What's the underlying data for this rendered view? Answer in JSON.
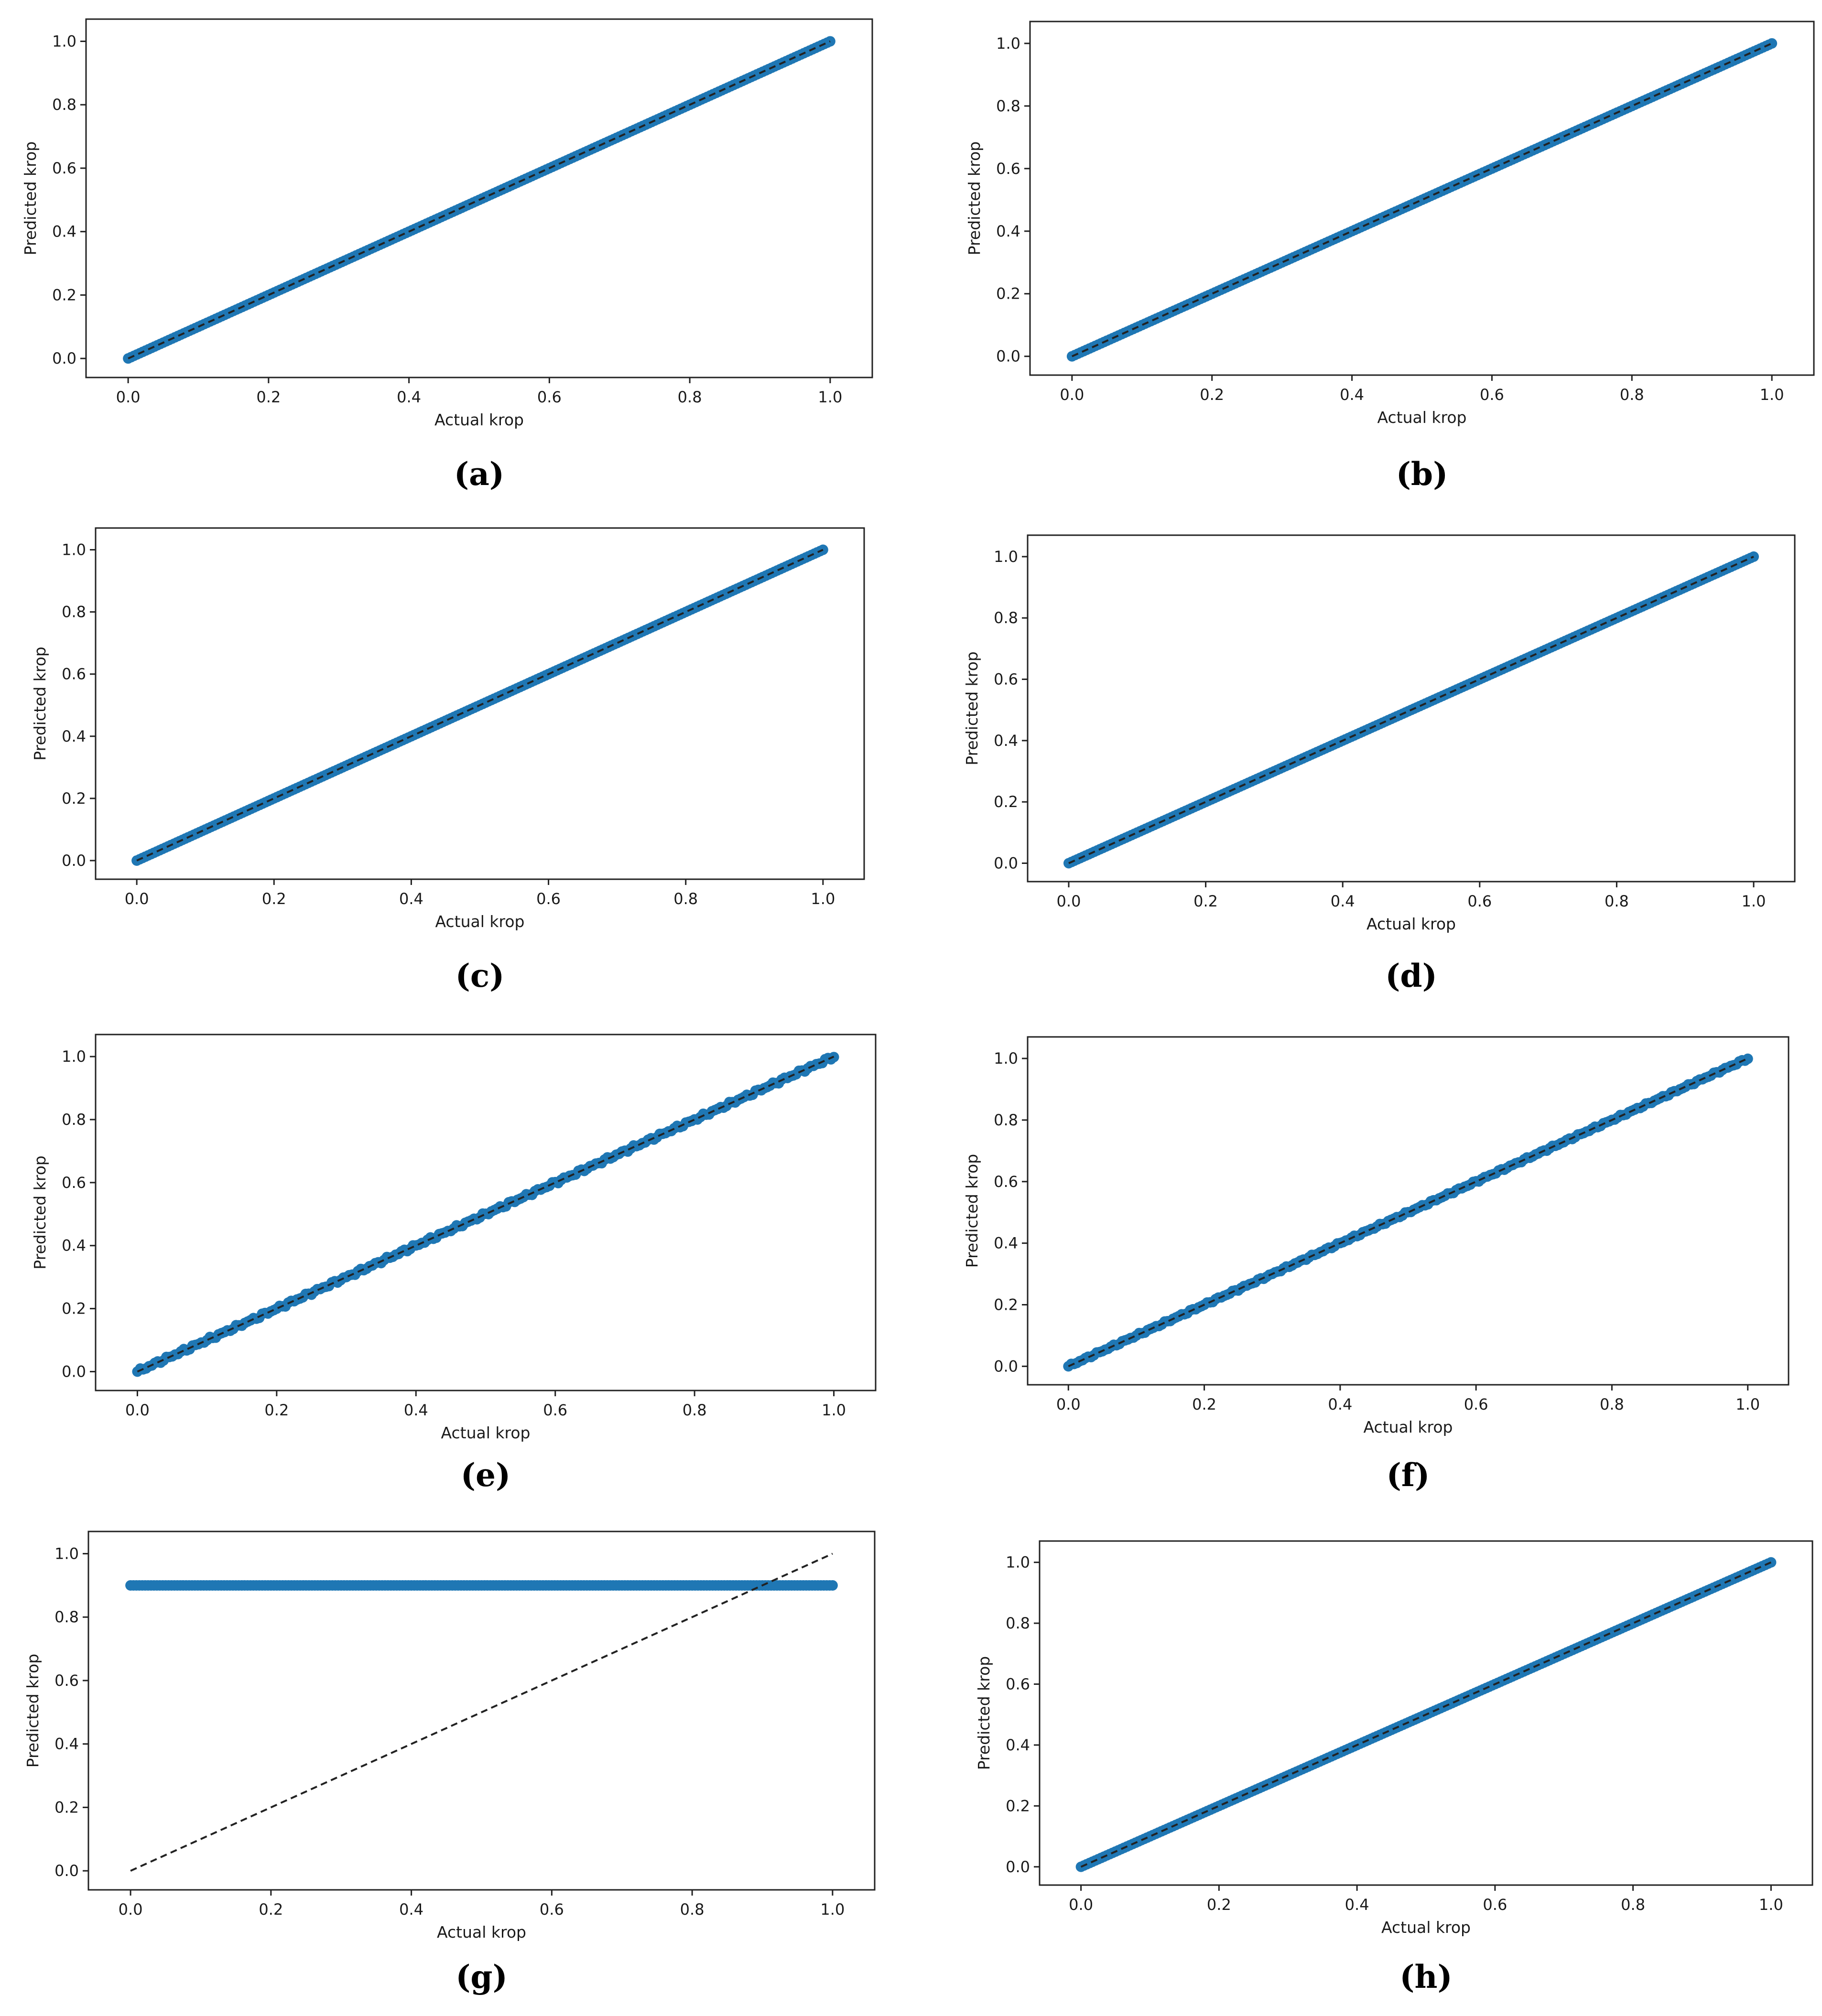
{
  "chart_data": [
    {
      "type": "scatter",
      "panel_label": "(a)",
      "xlabel": "Actual krop",
      "ylabel": "Predicted krop",
      "xlim": [
        -0.06,
        1.06
      ],
      "ylim": [
        -0.06,
        1.07
      ],
      "xticks": [
        0.0,
        0.2,
        0.4,
        0.6,
        0.8,
        1.0
      ],
      "yticks": [
        0.0,
        0.2,
        0.4,
        0.6,
        0.8,
        1.0
      ],
      "xtick_labels": [
        "0.0",
        "0.2",
        "0.4",
        "0.6",
        "0.8",
        "1.0"
      ],
      "ytick_labels": [
        "0.0",
        "0.2",
        "0.4",
        "0.6",
        "0.8",
        "1.0"
      ],
      "series": [
        {
          "name": "predictions",
          "kind": "points",
          "pattern": "identity",
          "x_range": [
            0.0,
            1.0
          ],
          "jitter": 0.0
        },
        {
          "name": "reference",
          "kind": "dashed-line",
          "x": [
            0.0,
            1.0
          ],
          "y": [
            0.0,
            1.0
          ]
        }
      ]
    },
    {
      "type": "scatter",
      "panel_label": "(b)",
      "xlabel": "Actual krop",
      "ylabel": "Predicted krop",
      "xlim": [
        -0.06,
        1.06
      ],
      "ylim": [
        -0.06,
        1.07
      ],
      "xticks": [
        0.0,
        0.2,
        0.4,
        0.6,
        0.8,
        1.0
      ],
      "yticks": [
        0.0,
        0.2,
        0.4,
        0.6,
        0.8,
        1.0
      ],
      "xtick_labels": [
        "0.0",
        "0.2",
        "0.4",
        "0.6",
        "0.8",
        "1.0"
      ],
      "ytick_labels": [
        "0.0",
        "0.2",
        "0.4",
        "0.6",
        "0.8",
        "1.0"
      ],
      "series": [
        {
          "name": "predictions",
          "kind": "points",
          "pattern": "identity",
          "x_range": [
            0.0,
            1.0
          ],
          "jitter": 0.0
        },
        {
          "name": "reference",
          "kind": "dashed-line",
          "x": [
            0.0,
            1.0
          ],
          "y": [
            0.0,
            1.0
          ]
        }
      ]
    },
    {
      "type": "scatter",
      "panel_label": "(c)",
      "xlabel": "Actual krop",
      "ylabel": "Predicted krop",
      "xlim": [
        -0.06,
        1.06
      ],
      "ylim": [
        -0.06,
        1.07
      ],
      "xticks": [
        0.0,
        0.2,
        0.4,
        0.6,
        0.8,
        1.0
      ],
      "yticks": [
        0.0,
        0.2,
        0.4,
        0.6,
        0.8,
        1.0
      ],
      "xtick_labels": [
        "0.0",
        "0.2",
        "0.4",
        "0.6",
        "0.8",
        "1.0"
      ],
      "ytick_labels": [
        "0.0",
        "0.2",
        "0.4",
        "0.6",
        "0.8",
        "1.0"
      ],
      "series": [
        {
          "name": "predictions",
          "kind": "points",
          "pattern": "identity",
          "x_range": [
            0.0,
            1.0
          ],
          "jitter": 0.0
        },
        {
          "name": "reference",
          "kind": "dashed-line",
          "x": [
            0.0,
            1.0
          ],
          "y": [
            0.0,
            1.0
          ]
        }
      ]
    },
    {
      "type": "scatter",
      "panel_label": "(d)",
      "xlabel": "Actual krop",
      "ylabel": "Predicted krop",
      "xlim": [
        -0.06,
        1.06
      ],
      "ylim": [
        -0.06,
        1.07
      ],
      "xticks": [
        0.0,
        0.2,
        0.4,
        0.6,
        0.8,
        1.0
      ],
      "yticks": [
        0.0,
        0.2,
        0.4,
        0.6,
        0.8,
        1.0
      ],
      "xtick_labels": [
        "0.0",
        "0.2",
        "0.4",
        "0.6",
        "0.8",
        "1.0"
      ],
      "ytick_labels": [
        "0.0",
        "0.2",
        "0.4",
        "0.6",
        "0.8",
        "1.0"
      ],
      "series": [
        {
          "name": "predictions",
          "kind": "points",
          "pattern": "identity",
          "x_range": [
            0.0,
            1.0
          ],
          "jitter": 0.0
        },
        {
          "name": "reference",
          "kind": "dashed-line",
          "x": [
            0.0,
            1.0
          ],
          "y": [
            0.0,
            1.0
          ]
        }
      ]
    },
    {
      "type": "scatter",
      "panel_label": "(e)",
      "xlabel": "Actual krop",
      "ylabel": "Predicted krop",
      "xlim": [
        -0.06,
        1.06
      ],
      "ylim": [
        -0.06,
        1.07
      ],
      "xticks": [
        0.0,
        0.2,
        0.4,
        0.6,
        0.8,
        1.0
      ],
      "yticks": [
        0.0,
        0.2,
        0.4,
        0.6,
        0.8,
        1.0
      ],
      "xtick_labels": [
        "0.0",
        "0.2",
        "0.4",
        "0.6",
        "0.8",
        "1.0"
      ],
      "ytick_labels": [
        "0.0",
        "0.2",
        "0.4",
        "0.6",
        "0.8",
        "1.0"
      ],
      "series": [
        {
          "name": "predictions",
          "kind": "points",
          "pattern": "identity",
          "x_range": [
            0.0,
            1.0
          ],
          "jitter": 0.006
        },
        {
          "name": "reference",
          "kind": "dashed-line",
          "x": [
            0.0,
            1.0
          ],
          "y": [
            0.0,
            1.0
          ]
        }
      ]
    },
    {
      "type": "scatter",
      "panel_label": "(f)",
      "xlabel": "Actual krop",
      "ylabel": "Predicted krop",
      "xlim": [
        -0.06,
        1.06
      ],
      "ylim": [
        -0.06,
        1.07
      ],
      "xticks": [
        0.0,
        0.2,
        0.4,
        0.6,
        0.8,
        1.0
      ],
      "yticks": [
        0.0,
        0.2,
        0.4,
        0.6,
        0.8,
        1.0
      ],
      "xtick_labels": [
        "0.0",
        "0.2",
        "0.4",
        "0.6",
        "0.8",
        "1.0"
      ],
      "ytick_labels": [
        "0.0",
        "0.2",
        "0.4",
        "0.6",
        "0.8",
        "1.0"
      ],
      "series": [
        {
          "name": "predictions",
          "kind": "points",
          "pattern": "identity",
          "x_range": [
            0.0,
            1.0
          ],
          "jitter": 0.004
        },
        {
          "name": "reference",
          "kind": "dashed-line",
          "x": [
            0.0,
            1.0
          ],
          "y": [
            0.0,
            1.0
          ]
        }
      ]
    },
    {
      "type": "scatter",
      "panel_label": "(g)",
      "xlabel": "Actual krop",
      "ylabel": "Predicted krop",
      "xlim": [
        -0.06,
        1.06
      ],
      "ylim": [
        -0.06,
        1.07
      ],
      "xticks": [
        0.0,
        0.2,
        0.4,
        0.6,
        0.8,
        1.0
      ],
      "yticks": [
        0.0,
        0.2,
        0.4,
        0.6,
        0.8,
        1.0
      ],
      "xtick_labels": [
        "0.0",
        "0.2",
        "0.4",
        "0.6",
        "0.8",
        "1.0"
      ],
      "ytick_labels": [
        "0.0",
        "0.2",
        "0.4",
        "0.6",
        "0.8",
        "1.0"
      ],
      "series": [
        {
          "name": "predictions",
          "kind": "points",
          "pattern": "constant",
          "value": 0.9,
          "x_range": [
            0.0,
            1.0
          ],
          "jitter": 0.0
        },
        {
          "name": "reference",
          "kind": "dashed-line",
          "x": [
            0.0,
            1.0
          ],
          "y": [
            0.0,
            1.0
          ]
        }
      ]
    },
    {
      "type": "scatter",
      "panel_label": "(h)",
      "xlabel": "Actual krop",
      "ylabel": "Predicted krop",
      "xlim": [
        -0.06,
        1.06
      ],
      "ylim": [
        -0.06,
        1.07
      ],
      "xticks": [
        0.0,
        0.2,
        0.4,
        0.6,
        0.8,
        1.0
      ],
      "yticks": [
        0.0,
        0.2,
        0.4,
        0.6,
        0.8,
        1.0
      ],
      "xtick_labels": [
        "0.0",
        "0.2",
        "0.4",
        "0.6",
        "0.8",
        "1.0"
      ],
      "ytick_labels": [
        "0.0",
        "0.2",
        "0.4",
        "0.6",
        "0.8",
        "1.0"
      ],
      "series": [
        {
          "name": "predictions",
          "kind": "points",
          "pattern": "identity",
          "x_range": [
            0.0,
            1.0
          ],
          "jitter": 0.0
        },
        {
          "name": "reference",
          "kind": "dashed-line",
          "x": [
            0.0,
            1.0
          ],
          "y": [
            0.0,
            1.0
          ]
        }
      ]
    }
  ],
  "colors": {
    "points": "#1f77b4",
    "reference_line": "#222222",
    "frame": "#222222"
  }
}
